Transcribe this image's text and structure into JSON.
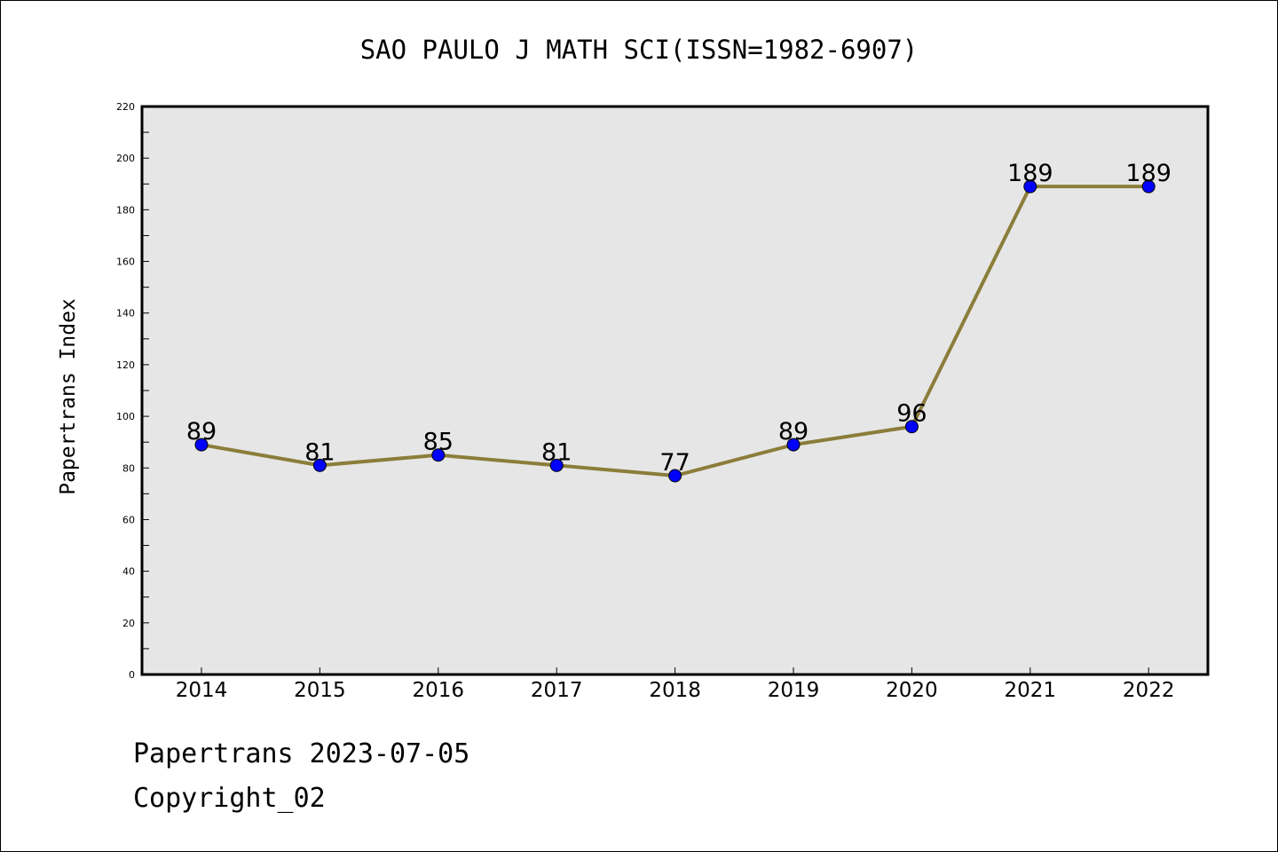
{
  "chart_data": {
    "type": "line",
    "title": "SAO PAULO J MATH SCI(ISSN=1982-6907)",
    "ylabel": "Papertrans Index",
    "xlabel": "",
    "categories": [
      "2014",
      "2015",
      "2016",
      "2017",
      "2018",
      "2019",
      "2020",
      "2021",
      "2022"
    ],
    "values": [
      89,
      81,
      85,
      81,
      77,
      89,
      96,
      189,
      189
    ],
    "ylim": [
      0,
      220
    ],
    "yticks": [
      0,
      20,
      40,
      60,
      80,
      100,
      120,
      140,
      160,
      180,
      200,
      220
    ],
    "grid": false,
    "legend": "none",
    "line_color": "#8b7d3a",
    "marker_color": "#0000ff",
    "plot_background": "#e6e6e6"
  },
  "footer": {
    "source": "Papertrans 2023-07-05",
    "copyright": "Copyright_02"
  }
}
